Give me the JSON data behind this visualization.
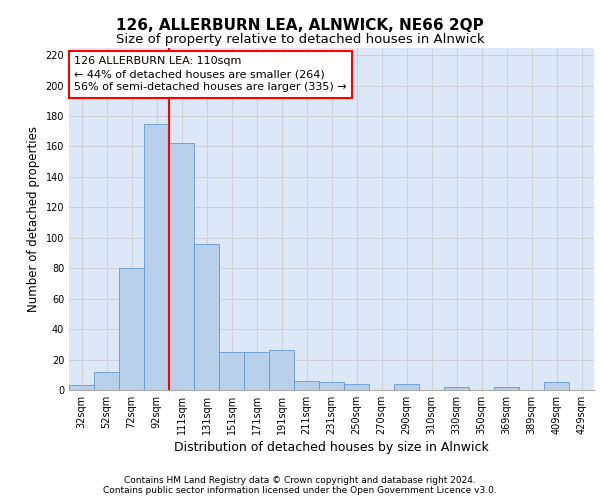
{
  "title": "126, ALLERBURN LEA, ALNWICK, NE66 2QP",
  "subtitle": "Size of property relative to detached houses in Alnwick",
  "xlabel": "Distribution of detached houses by size in Alnwick",
  "ylabel": "Number of detached properties",
  "bin_labels": [
    "32sqm",
    "52sqm",
    "72sqm",
    "92sqm",
    "111sqm",
    "131sqm",
    "151sqm",
    "171sqm",
    "191sqm",
    "211sqm",
    "231sqm",
    "250sqm",
    "270sqm",
    "290sqm",
    "310sqm",
    "330sqm",
    "350sqm",
    "369sqm",
    "389sqm",
    "409sqm",
    "429sqm"
  ],
  "bar_values": [
    3,
    12,
    80,
    175,
    162,
    96,
    25,
    25,
    26,
    6,
    5,
    4,
    0,
    4,
    0,
    2,
    0,
    2,
    0,
    5,
    0
  ],
  "bar_color": "#b8d0ea",
  "bar_edgecolor": "#6699cc",
  "vline_color": "red",
  "vline_linewidth": 1.5,
  "vline_position": 3.5,
  "annotation_text": "126 ALLERBURN LEA: 110sqm\n← 44% of detached houses are smaller (264)\n56% of semi-detached houses are larger (335) →",
  "annotation_box_edgecolor": "red",
  "annotation_box_facecolor": "white",
  "ylim": [
    0,
    225
  ],
  "yticks": [
    0,
    20,
    40,
    60,
    80,
    100,
    120,
    140,
    160,
    180,
    200,
    220
  ],
  "grid_color": "#cccccc",
  "background_color": "#dce8f8",
  "footer_line1": "Contains HM Land Registry data © Crown copyright and database right 2024.",
  "footer_line2": "Contains public sector information licensed under the Open Government Licence v3.0.",
  "title_fontsize": 11,
  "subtitle_fontsize": 9.5,
  "xlabel_fontsize": 9,
  "ylabel_fontsize": 8.5,
  "tick_fontsize": 7,
  "annotation_fontsize": 8,
  "footer_fontsize": 6.5
}
